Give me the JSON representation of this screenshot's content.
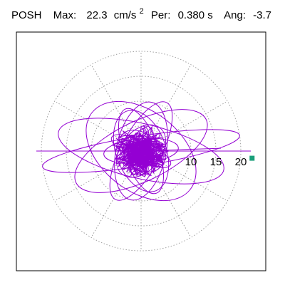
{
  "header": {
    "station": "POSH",
    "max_label": "Max:",
    "max_value": "22.3",
    "max_unit_base": "cm/s",
    "max_unit_exp": "2",
    "period_label": "Per:",
    "period_value": "0.380 s",
    "angle_label": "Ang:",
    "angle_value": "-3.7"
  },
  "colors": {
    "trace": "#9400d3",
    "marker": "#1a9f7a",
    "grid": "#a0a0a0",
    "frame": "#000000"
  },
  "chart_data": {
    "type": "polar-orbit",
    "title": "",
    "xlabel": "",
    "ylabel": "",
    "rmax": 22.3,
    "rings": [
      5,
      10,
      15,
      20
    ],
    "spokes_deg": [
      0,
      30,
      60,
      90,
      120,
      150,
      180,
      210,
      240,
      270,
      300,
      330
    ],
    "tick_labels": [
      "10",
      "15",
      "20"
    ],
    "tick_values": [
      10,
      15,
      20
    ],
    "grid": true,
    "peak_marker": {
      "r": 22.3,
      "angle_deg": -3.7
    },
    "orbits": [
      {
        "a": 20.0,
        "b": 3.0,
        "rot": 9
      },
      {
        "a": 17.0,
        "b": 5.5,
        "rot": -13
      },
      {
        "a": 14.5,
        "b": 6.0,
        "rot": 26
      },
      {
        "a": 12.5,
        "b": 8.0,
        "rot": -38
      },
      {
        "a": 10.0,
        "b": 5.0,
        "rot": 78
      },
      {
        "a": 11.0,
        "b": 4.0,
        "rot": 62
      },
      {
        "a": 8.5,
        "b": 5.0,
        "rot": 110
      },
      {
        "a": 7.5,
        "b": 2.5,
        "rot": 5
      },
      {
        "a": 6.0,
        "b": 4.0,
        "rot": 50
      },
      {
        "a": 9.0,
        "b": 3.5,
        "rot": -70
      },
      {
        "a": 5.0,
        "b": 3.5,
        "rot": 140
      },
      {
        "a": 6.5,
        "b": 2.0,
        "rot": -25
      }
    ],
    "lines": [
      {
        "angle_deg": 0,
        "r": 22.0
      },
      {
        "angle_deg": 180,
        "r": 21.0
      },
      {
        "angle_deg": 2,
        "r": 16.0
      }
    ]
  }
}
